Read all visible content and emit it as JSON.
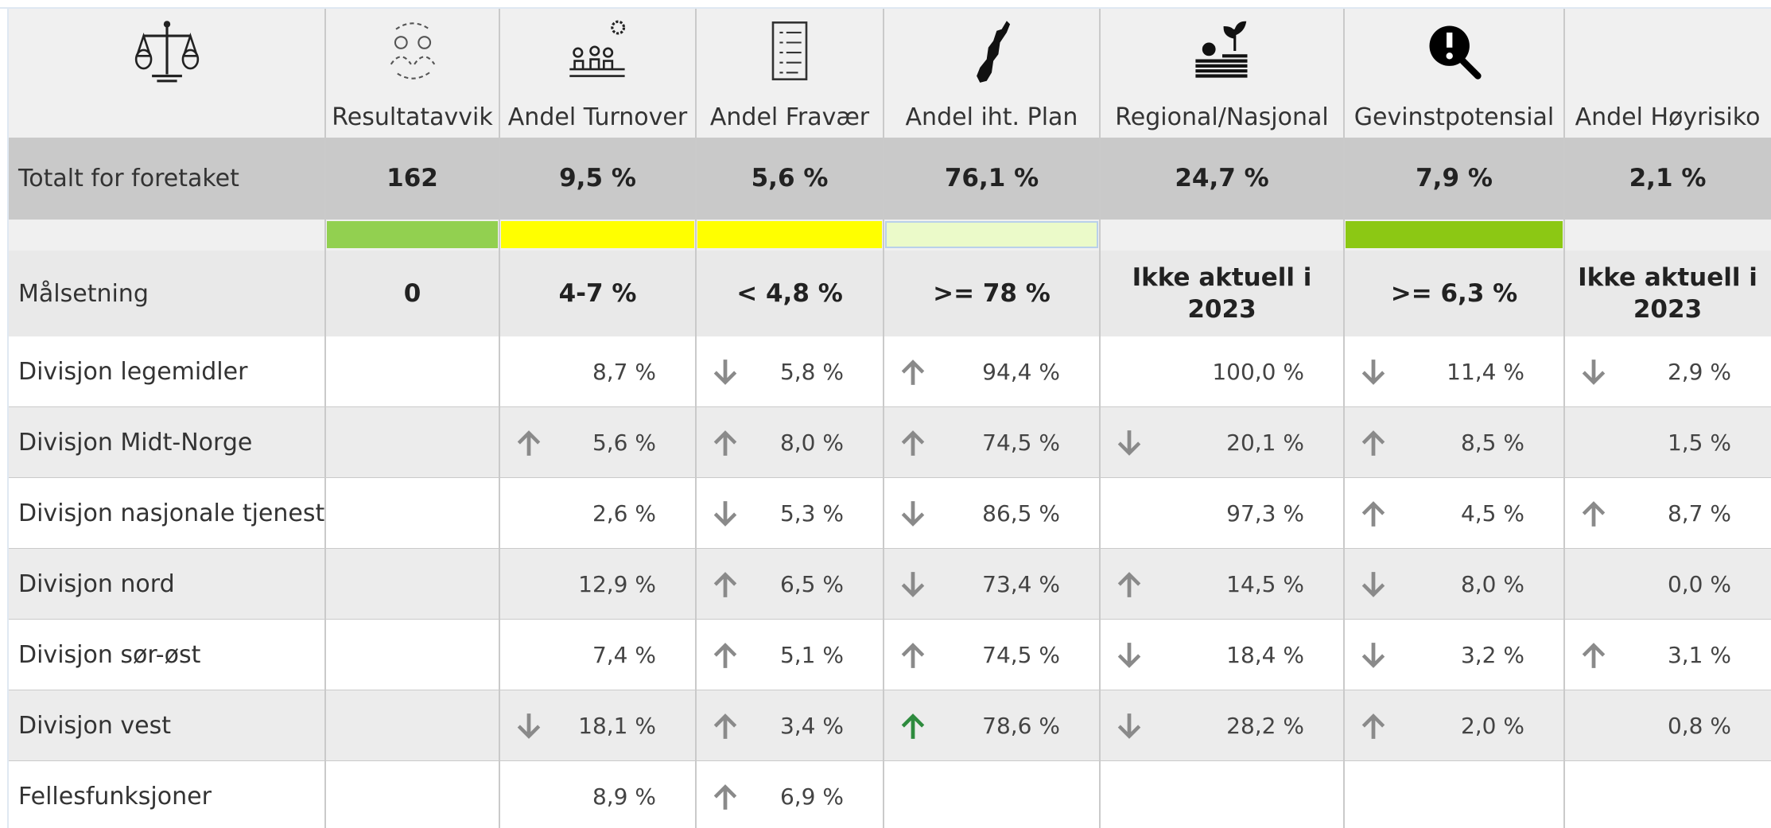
{
  "columns": [
    "Resultatavvik",
    "Andel Turnover",
    "Andel Fravær",
    "Andel iht. Plan",
    "Regional/Nasjonal",
    "Gevinstpotensial",
    "Andel Høyrisiko"
  ],
  "total": {
    "label": "Totalt for foretaket",
    "values": [
      "162",
      "9,5 %",
      "5,6 %",
      "76,1 %",
      "24,7 %",
      "7,9 %",
      "2,1 %"
    ]
  },
  "target": {
    "label": "Målsetning",
    "values": [
      "0",
      "4-7 %",
      "< 4,8 %",
      ">= 78 %",
      "Ikke aktuell i 2023",
      ">= 6,3 %",
      "Ikke aktuell i 2023"
    ]
  },
  "rows": [
    {
      "label": "Divisjon legemidler",
      "values": [
        "8,7 %",
        "5,8 %",
        "94,4 %",
        "100,0 %",
        "11,4 %",
        "2,9 %"
      ]
    },
    {
      "label": "Divisjon Midt-Norge",
      "values": [
        "5,6 %",
        "8,0 %",
        "74,5 %",
        "20,1 %",
        "8,5 %",
        "1,5 %"
      ]
    },
    {
      "label": "Divisjon nasjonale tjenester",
      "values": [
        "2,6 %",
        "5,3 %",
        "86,5 %",
        "97,3 %",
        "4,5 %",
        "8,7 %"
      ]
    },
    {
      "label": "Divisjon nord",
      "values": [
        "12,9 %",
        "6,5 %",
        "73,4 %",
        "14,5 %",
        "8,0 %",
        "0,0 %"
      ]
    },
    {
      "label": "Divisjon sør-øst",
      "values": [
        "7,4 %",
        "5,1 %",
        "74,5 %",
        "18,4 %",
        "3,2 %",
        "3,1 %"
      ]
    },
    {
      "label": "Divisjon vest",
      "values": [
        "18,1 %",
        "3,4 %",
        "78,6 %",
        "28,2 %",
        "2,0 %",
        "0,8 %"
      ]
    },
    {
      "label": "Fellesfunksjoner",
      "values": [
        "8,9 %",
        "6,9 %"
      ]
    }
  ]
}
